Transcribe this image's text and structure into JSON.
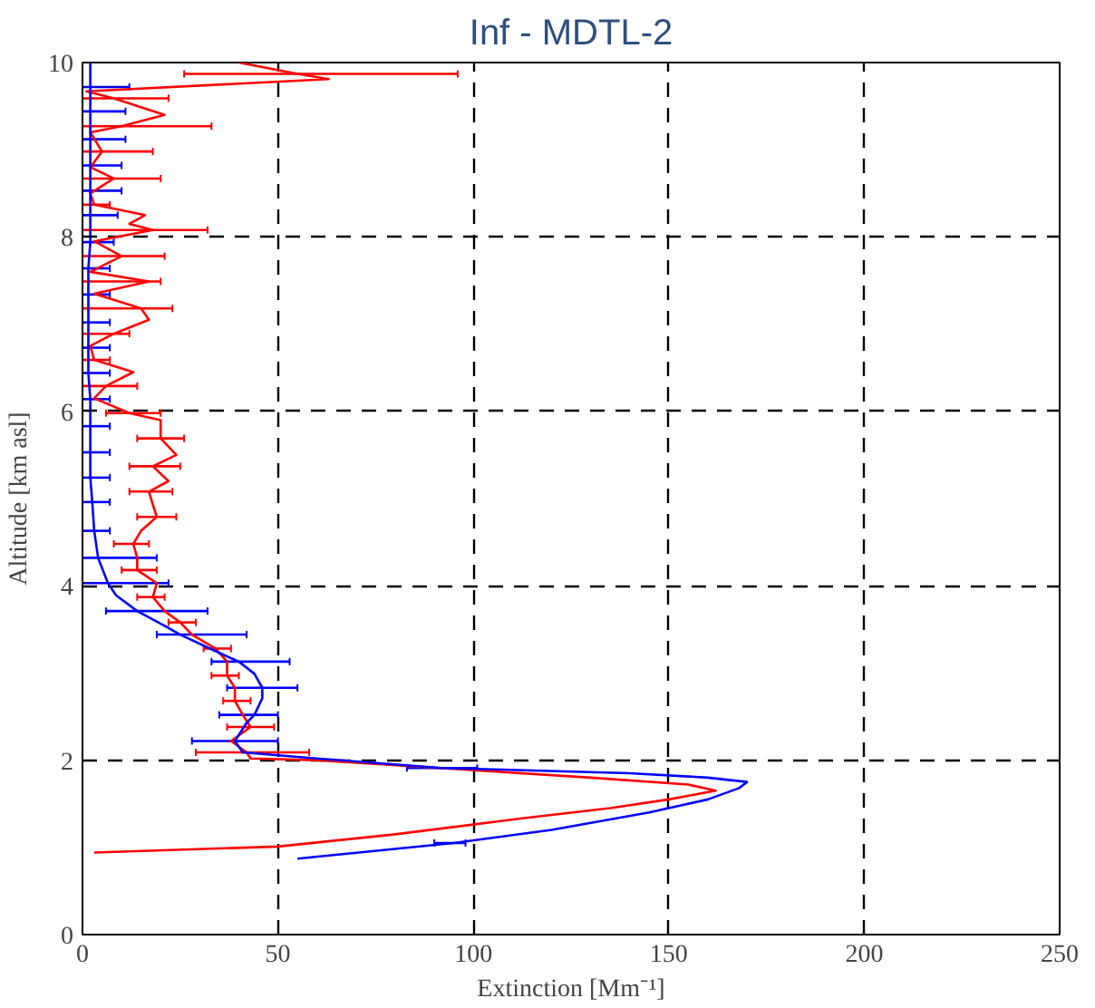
{
  "chart_data": {
    "type": "line",
    "title": "Inf - MDTL-2",
    "xlabel": "Extinction [Mm⁻¹]",
    "ylabel": "Altitude [km asl]",
    "xlim": [
      0,
      250
    ],
    "ylim": [
      0,
      10
    ],
    "xticks": [
      0,
      50,
      100,
      150,
      200,
      250
    ],
    "yticks": [
      0,
      2,
      4,
      6,
      8,
      10
    ],
    "grid": true,
    "marker": "none",
    "line_style": "solid",
    "series": [
      {
        "color": "#ff0000",
        "x": [
          40,
          55,
          63,
          1,
          8,
          21,
          10,
          2,
          5,
          2,
          8,
          2,
          3,
          16,
          12,
          18,
          3,
          10,
          2,
          17,
          3,
          15,
          17,
          8,
          2,
          3,
          13,
          6,
          3,
          12,
          20,
          20,
          24,
          18,
          22,
          17,
          18,
          19,
          15,
          13,
          14,
          14,
          19,
          18,
          21,
          25,
          28,
          34,
          37,
          37,
          39,
          39,
          41,
          43,
          38,
          42,
          43,
          60,
          95,
          130,
          155,
          162,
          150,
          135,
          112,
          80,
          50,
          3
        ],
        "values": [
          10.0,
          9.87,
          9.81,
          9.67,
          9.59,
          9.4,
          9.27,
          9.2,
          8.98,
          8.8,
          8.67,
          8.5,
          8.37,
          8.25,
          8.15,
          8.08,
          7.95,
          7.78,
          7.6,
          7.49,
          7.35,
          7.18,
          7.05,
          6.89,
          6.75,
          6.59,
          6.45,
          6.29,
          6.15,
          5.98,
          5.9,
          5.69,
          5.5,
          5.37,
          5.2,
          5.08,
          4.93,
          4.79,
          4.63,
          4.48,
          4.32,
          4.18,
          4.03,
          3.87,
          3.71,
          3.58,
          3.44,
          3.28,
          3.13,
          2.97,
          2.83,
          2.68,
          2.52,
          2.38,
          2.22,
          2.09,
          2.02,
          2.0,
          1.9,
          1.8,
          1.72,
          1.65,
          1.55,
          1.45,
          1.33,
          1.15,
          1.01,
          0.94
        ],
        "xerrors": [
          null,
          [
            26,
            96
          ],
          null,
          null,
          [
            0,
            22
          ],
          null,
          [
            0,
            33
          ],
          null,
          [
            0,
            18
          ],
          null,
          [
            0,
            20
          ],
          null,
          [
            0,
            7
          ],
          null,
          null,
          [
            0,
            32
          ],
          null,
          [
            0,
            21
          ],
          null,
          [
            0,
            20
          ],
          null,
          [
            0,
            23
          ],
          null,
          [
            0,
            12
          ],
          null,
          [
            0,
            7
          ],
          null,
          [
            0,
            14
          ],
          null,
          [
            6,
            20
          ],
          null,
          [
            14,
            26
          ],
          null,
          [
            12,
            25
          ],
          null,
          [
            12,
            23
          ],
          null,
          [
            14,
            24
          ],
          null,
          [
            8,
            17
          ],
          null,
          [
            10,
            19
          ],
          null,
          [
            14,
            21
          ],
          null,
          [
            22,
            29
          ],
          null,
          [
            31,
            38
          ],
          null,
          [
            33,
            40
          ],
          null,
          [
            36,
            43
          ],
          null,
          [
            37,
            49
          ],
          null,
          [
            29,
            58
          ],
          null,
          null,
          null,
          null,
          null,
          null,
          null,
          null,
          null,
          null,
          null,
          null
        ]
      },
      {
        "color": "#0000ff",
        "x": [
          2,
          2,
          2,
          2,
          2,
          2,
          2,
          2,
          1.5,
          1.5,
          1.5,
          1.5,
          1.5,
          2,
          2,
          2,
          2,
          2.5,
          3,
          4,
          6.5,
          8.6,
          14,
          21,
          25,
          35,
          40,
          44,
          46,
          46,
          44,
          42,
          39,
          41,
          60,
          92,
          140,
          160,
          170,
          168,
          160,
          145,
          120,
          95,
          55
        ],
        "values": [
          10.0,
          9.72,
          9.44,
          9.12,
          8.82,
          8.53,
          8.25,
          7.94,
          7.64,
          7.34,
          7.02,
          6.73,
          6.44,
          6.14,
          5.83,
          5.53,
          5.24,
          4.96,
          4.63,
          4.32,
          4.03,
          3.89,
          3.71,
          3.54,
          3.44,
          3.23,
          3.13,
          2.99,
          2.83,
          2.71,
          2.52,
          2.43,
          2.22,
          2.09,
          2.02,
          1.91,
          1.85,
          1.8,
          1.75,
          1.68,
          1.55,
          1.4,
          1.2,
          1.05,
          0.87
        ],
        "xerrors": [
          null,
          [
            0,
            12
          ],
          [
            0,
            11
          ],
          [
            0,
            11
          ],
          [
            0,
            10
          ],
          [
            0,
            10
          ],
          [
            0,
            9
          ],
          [
            0,
            8
          ],
          [
            0,
            7
          ],
          [
            0,
            7
          ],
          [
            0,
            7
          ],
          [
            0,
            7
          ],
          [
            0,
            7
          ],
          [
            0,
            7
          ],
          [
            0,
            7
          ],
          [
            0,
            7
          ],
          [
            0,
            7
          ],
          [
            0,
            7
          ],
          [
            0,
            7
          ],
          [
            0,
            19
          ],
          [
            0,
            22
          ],
          null,
          [
            6,
            32
          ],
          null,
          [
            19,
            42
          ],
          null,
          [
            33,
            53
          ],
          null,
          [
            37,
            55
          ],
          null,
          [
            35,
            50
          ],
          null,
          [
            28,
            50
          ],
          null,
          null,
          [
            83,
            101
          ],
          null,
          null,
          null,
          null,
          null,
          null,
          null,
          [
            90,
            98
          ],
          null
        ]
      }
    ]
  }
}
